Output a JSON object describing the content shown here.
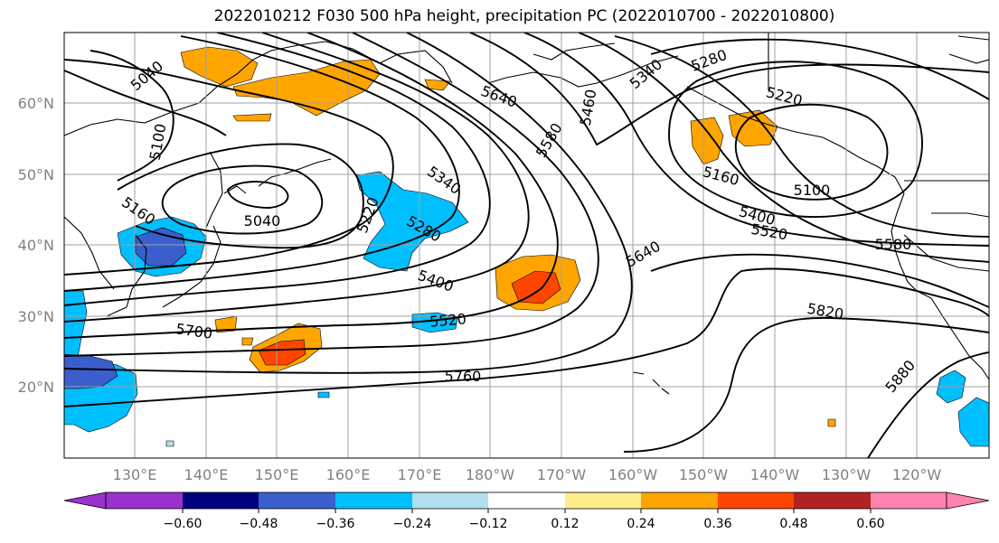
{
  "title": "2022010212 F030 500 hPa height, precipitation PC (2022010700 - 2022010800)",
  "lat_labels": [
    "60°N",
    "50°N",
    "40°N",
    "30°N",
    "20°N"
  ],
  "lon_labels": [
    "130°E",
    "140°E",
    "150°E",
    "160°E",
    "170°E",
    "180°W",
    "170°W",
    "160°W",
    "150°W",
    "140°W",
    "130°W",
    "120°W"
  ],
  "contour_labels": [
    "5040",
    "5100",
    "5160",
    "5220",
    "5280",
    "5340",
    "5400",
    "5460",
    "5520",
    "5580",
    "5640",
    "5700",
    "5760",
    "5820",
    "5880"
  ],
  "colorbar": {
    "colors": [
      "#9932cc",
      "#000080",
      "#3a5fcd",
      "#00bfff",
      "#b2dfee",
      "#ffffff",
      "#ffec8b",
      "#ffa500",
      "#ff4500",
      "#b22222",
      "#ff83b0"
    ],
    "tick_labels": [
      "−0.60",
      "−0.48",
      "−0.36",
      "−0.24",
      "−0.12",
      "0.12",
      "0.24",
      "0.36",
      "0.48",
      "0.60"
    ]
  }
}
